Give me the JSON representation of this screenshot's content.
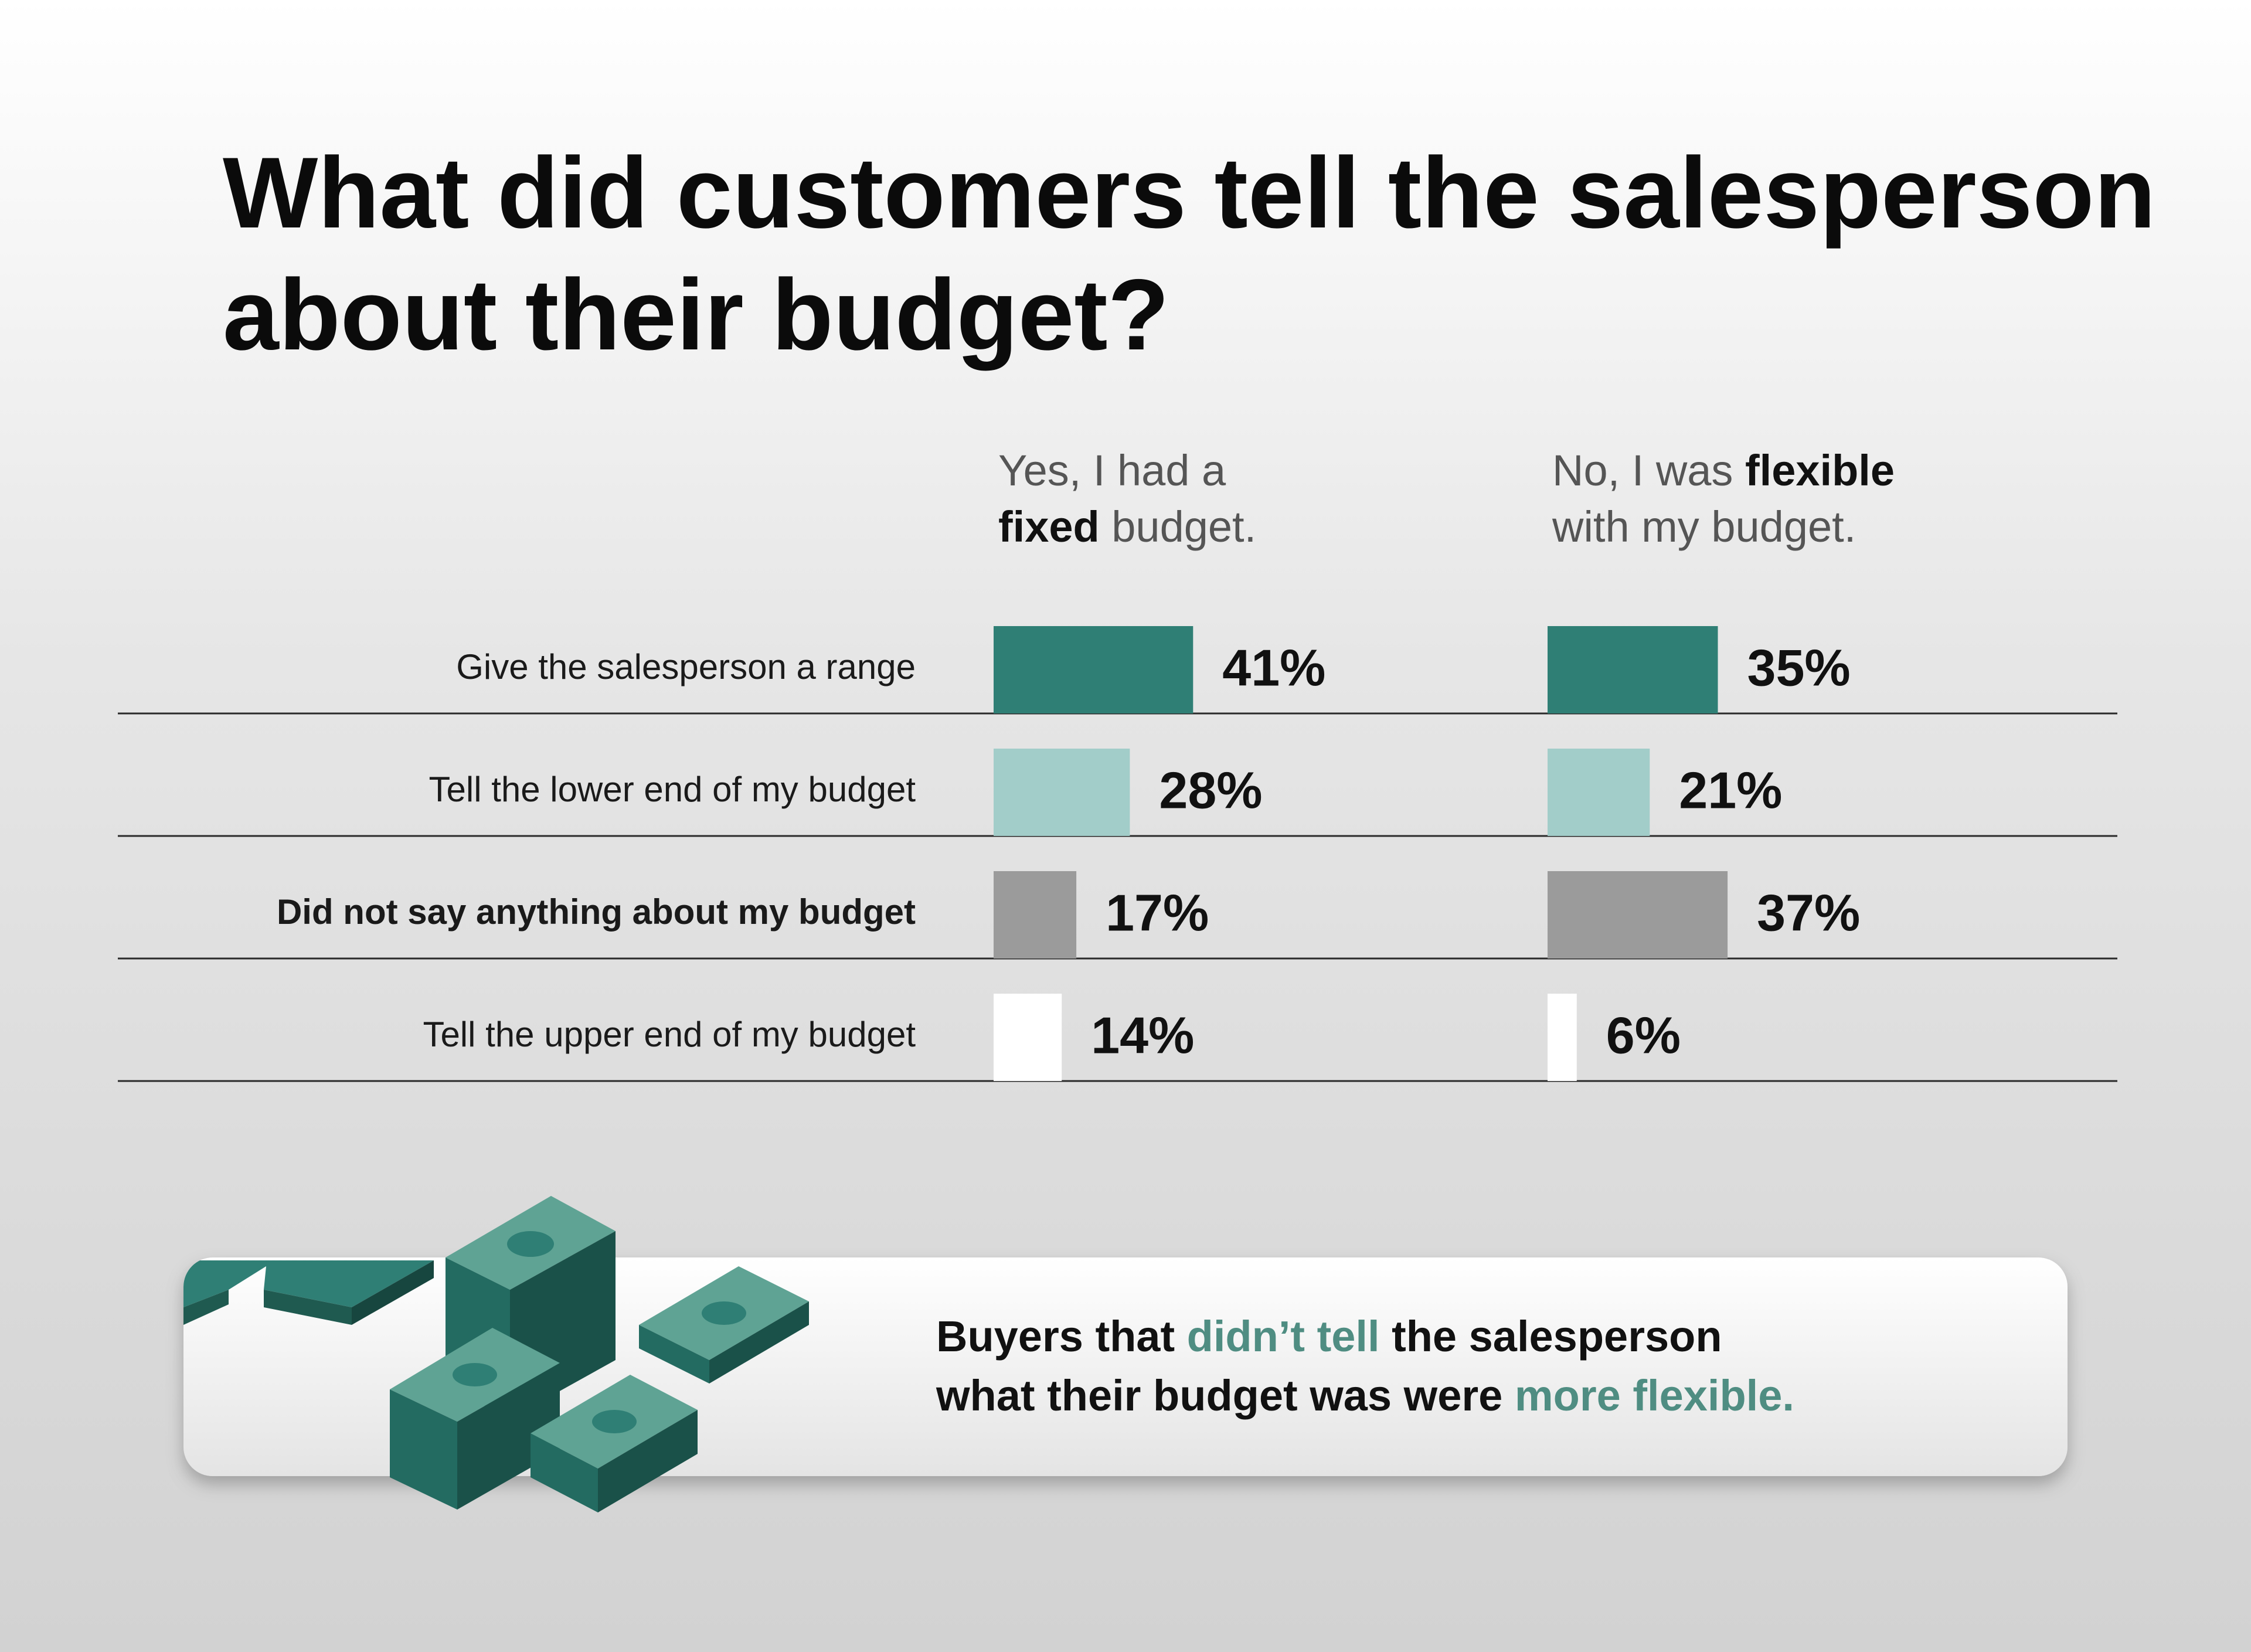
{
  "chart_data": {
    "type": "bar",
    "orientation": "horizontal",
    "title": "What did customers tell the salesperson about their budget?",
    "categories": [
      "Give the salesperson a range",
      "Tell the lower end of my budget",
      "Did not say anything about my budget",
      "Tell the upper end of my budget"
    ],
    "category_bold": [
      false,
      false,
      true,
      false
    ],
    "colors": [
      "#2f7f75",
      "#a2cdc9",
      "#9b9b9b",
      "#ffffff"
    ],
    "series": [
      {
        "name_lines": [
          [
            {
              "text": "Yes, I had a",
              "bold": false
            }
          ],
          [
            {
              "text": "fixed",
              "bold": true
            },
            {
              "text": " budget.",
              "bold": false
            }
          ]
        ],
        "values": [
          41,
          28,
          17,
          14
        ],
        "value_labels": [
          "41%",
          "28%",
          "17%",
          "14%"
        ]
      },
      {
        "name_lines": [
          [
            {
              "text": "No, I was ",
              "bold": false
            },
            {
              "text": "flexible",
              "bold": true
            }
          ],
          [
            {
              "text": "with my budget.",
              "bold": false
            }
          ]
        ],
        "values": [
          35,
          21,
          37,
          6
        ],
        "value_labels": [
          "35%",
          "21%",
          "37%",
          "6%"
        ]
      }
    ],
    "callout": {
      "highlight_color": "#4f8d82",
      "lines": [
        [
          {
            "text": "Buyers that ",
            "highlight": false
          },
          {
            "text": "didn’t tell",
            "highlight": true
          },
          {
            "text": " the salesperson",
            "highlight": false
          }
        ],
        [
          {
            "text": "what their budget was were ",
            "highlight": false
          },
          {
            "text": "more flexible.",
            "highlight": true
          }
        ]
      ]
    }
  }
}
